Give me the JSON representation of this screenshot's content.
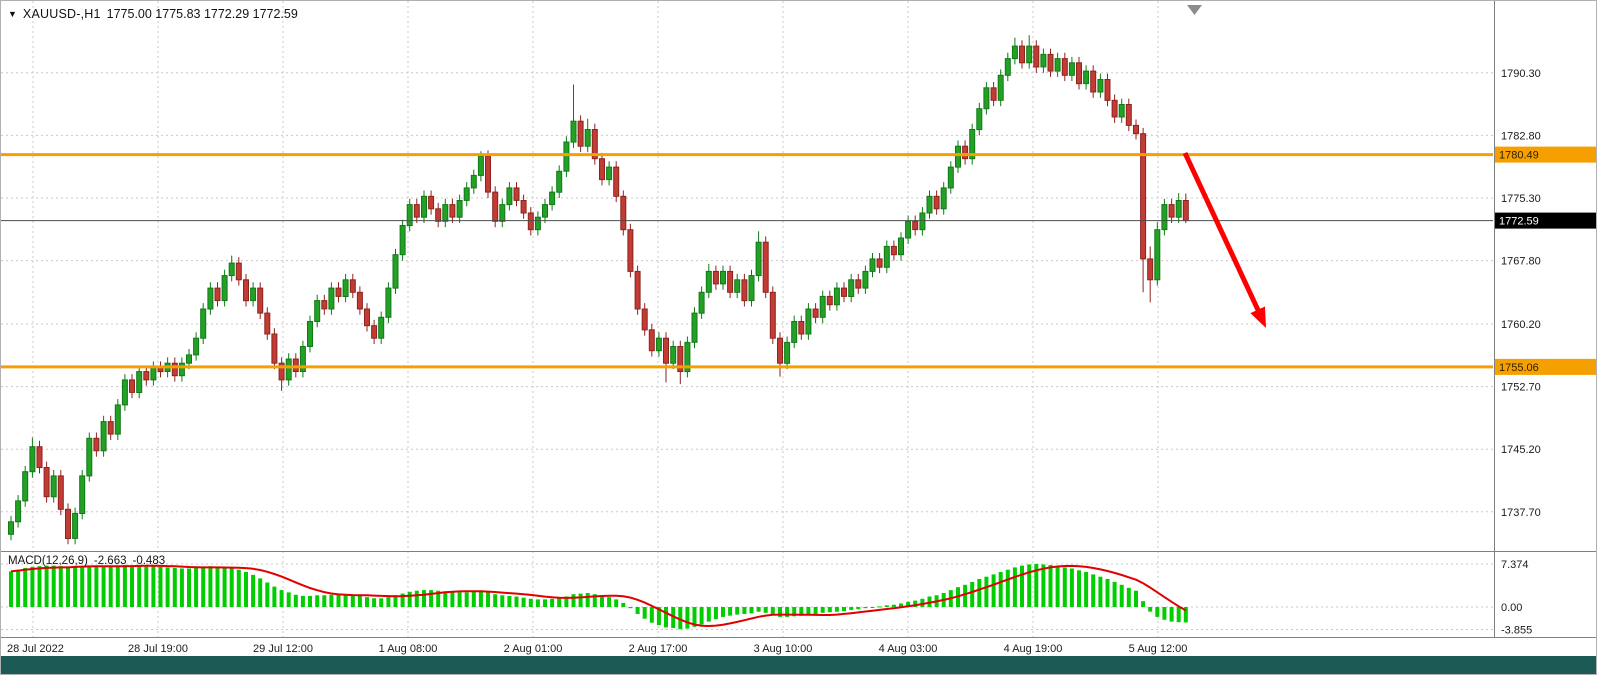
{
  "header": {
    "symbol_period": "XAUUSD-,H1",
    "ohlc_values": "1775.00 1775.83 1772.29 1772.59"
  },
  "colors": {
    "grid": "#C8C8C8",
    "separator": "#808080",
    "axis_text": "#1a1a1a",
    "bull": "#23A127",
    "bull_border": "#0F7A14",
    "bear": "#C23B34",
    "bear_border": "#8E231E",
    "macd_histogram": "#00CE00",
    "macd_signal": "#E00000",
    "level_line": "#F5A000",
    "current_price_line": "#4d4d4d",
    "current_price_tag_bg": "#000000",
    "current_price_tag_text": "#ffffff",
    "arrow": "#FF0000",
    "status_bar": "#1B5A55",
    "shift_marker": "#8c8c8c"
  },
  "chart_data": {
    "type": "candlestick",
    "title": "XAUUSD-,H1",
    "symbol": "XAUUSD-",
    "timeframe": "H1",
    "current_bar": {
      "open": "1775.00",
      "high": "1775.83",
      "low": "1772.29",
      "close": "1772.59"
    },
    "y_axis": {
      "price_min": 1733.0,
      "price_max": 1798.9,
      "ticks": [
        "1790.30",
        "1782.80",
        "1775.30",
        "1767.80",
        "1760.20",
        "1752.70",
        "1745.20",
        "1737.70"
      ]
    },
    "x_axis": {
      "labels": [
        "28 Jul 2022",
        "28 Jul 19:00",
        "29 Jul 12:00",
        "1 Aug 08:00",
        "2 Aug 01:00",
        "2 Aug 17:00",
        "3 Aug 10:00",
        "4 Aug 03:00",
        "4 Aug 19:00",
        "5 Aug 12:00"
      ]
    },
    "levels": [
      {
        "price": 1780.49,
        "label": "1780.49"
      },
      {
        "price": 1755.06,
        "label": "1755.06"
      }
    ],
    "current_price": {
      "price": 1772.59,
      "label": "1772.59"
    },
    "annotations": [
      {
        "type": "arrow",
        "color": "#FF0000",
        "direction": "down-right"
      }
    ],
    "candles": [
      [
        1735.0,
        1737.2,
        1734.3,
        1736.5
      ],
      [
        1736.5,
        1739.7,
        1735.8,
        1739.0
      ],
      [
        1739.0,
        1743.2,
        1738.3,
        1742.5
      ],
      [
        1742.5,
        1746.6,
        1741.8,
        1745.5
      ],
      [
        1745.5,
        1746.2,
        1742.3,
        1743.0
      ],
      [
        1743.0,
        1743.7,
        1738.8,
        1739.5
      ],
      [
        1739.5,
        1742.7,
        1738.8,
        1742.0
      ],
      [
        1742.0,
        1742.7,
        1737.3,
        1738.0
      ],
      [
        1738.0,
        1738.7,
        1733.8,
        1734.5
      ],
      [
        1734.5,
        1738.2,
        1733.8,
        1737.5
      ],
      [
        1737.5,
        1742.7,
        1736.8,
        1742.0
      ],
      [
        1742.0,
        1747.2,
        1741.3,
        1746.5
      ],
      [
        1746.5,
        1747.2,
        1744.3,
        1745.0
      ],
      [
        1745.0,
        1749.2,
        1744.3,
        1748.5
      ],
      [
        1748.5,
        1749.2,
        1746.3,
        1747.0
      ],
      [
        1747.0,
        1751.2,
        1746.3,
        1750.5
      ],
      [
        1750.5,
        1754.2,
        1749.8,
        1753.5
      ],
      [
        1753.5,
        1754.2,
        1751.3,
        1752.0
      ],
      [
        1752.0,
        1755.2,
        1751.3,
        1754.5
      ],
      [
        1754.5,
        1755.2,
        1752.8,
        1753.5
      ],
      [
        1753.5,
        1755.7,
        1752.8,
        1755.0
      ],
      [
        1755.0,
        1755.7,
        1753.8,
        1754.5
      ],
      [
        1754.5,
        1756.2,
        1753.8,
        1755.5
      ],
      [
        1755.5,
        1756.2,
        1753.3,
        1754.0
      ],
      [
        1754.0,
        1756.2,
        1753.3,
        1755.5
      ],
      [
        1755.5,
        1757.2,
        1754.8,
        1756.5
      ],
      [
        1756.5,
        1759.2,
        1755.8,
        1758.5
      ],
      [
        1758.5,
        1762.7,
        1757.8,
        1762.0
      ],
      [
        1762.0,
        1765.2,
        1761.3,
        1764.5
      ],
      [
        1764.5,
        1765.2,
        1762.3,
        1763.0
      ],
      [
        1763.0,
        1766.7,
        1762.3,
        1766.0
      ],
      [
        1766.0,
        1768.4,
        1765.3,
        1767.5
      ],
      [
        1767.5,
        1768.2,
        1764.8,
        1765.5
      ],
      [
        1765.5,
        1766.2,
        1762.3,
        1763.0
      ],
      [
        1763.0,
        1765.2,
        1762.3,
        1764.5
      ],
      [
        1764.5,
        1765.2,
        1760.8,
        1761.5
      ],
      [
        1761.5,
        1762.2,
        1758.3,
        1759.0
      ],
      [
        1759.0,
        1759.7,
        1754.8,
        1755.5
      ],
      [
        1755.5,
        1756.2,
        1752.2,
        1753.5
      ],
      [
        1753.5,
        1756.7,
        1752.8,
        1756.0
      ],
      [
        1756.0,
        1756.7,
        1753.8,
        1754.5
      ],
      [
        1754.5,
        1758.2,
        1753.8,
        1757.5
      ],
      [
        1757.5,
        1761.2,
        1756.8,
        1760.5
      ],
      [
        1760.5,
        1763.7,
        1759.8,
        1763.0
      ],
      [
        1763.0,
        1763.7,
        1761.3,
        1762.0
      ],
      [
        1762.0,
        1765.2,
        1761.3,
        1764.5
      ],
      [
        1764.5,
        1765.2,
        1762.8,
        1763.5
      ],
      [
        1763.5,
        1766.2,
        1762.8,
        1765.5
      ],
      [
        1765.5,
        1766.2,
        1763.3,
        1764.0
      ],
      [
        1764.0,
        1764.7,
        1761.3,
        1762.0
      ],
      [
        1762.0,
        1762.7,
        1759.3,
        1760.0
      ],
      [
        1760.0,
        1760.7,
        1757.8,
        1758.5
      ],
      [
        1758.5,
        1761.7,
        1757.8,
        1761.0
      ],
      [
        1761.0,
        1765.2,
        1760.3,
        1764.5
      ],
      [
        1764.5,
        1769.2,
        1763.8,
        1768.5
      ],
      [
        1768.5,
        1772.7,
        1767.8,
        1772.0
      ],
      [
        1772.0,
        1775.2,
        1771.3,
        1774.5
      ],
      [
        1774.5,
        1775.2,
        1772.3,
        1773.0
      ],
      [
        1773.0,
        1776.2,
        1772.3,
        1775.5
      ],
      [
        1775.5,
        1776.2,
        1773.3,
        1774.0
      ],
      [
        1774.0,
        1774.7,
        1771.8,
        1772.5
      ],
      [
        1772.5,
        1775.2,
        1771.8,
        1774.5
      ],
      [
        1774.5,
        1775.2,
        1772.3,
        1773.0
      ],
      [
        1773.0,
        1775.7,
        1772.3,
        1775.0
      ],
      [
        1775.0,
        1777.2,
        1774.3,
        1776.5
      ],
      [
        1776.5,
        1778.7,
        1775.8,
        1778.0
      ],
      [
        1778.0,
        1780.9,
        1777.3,
        1780.3
      ],
      [
        1780.3,
        1781.0,
        1775.3,
        1776.0
      ],
      [
        1776.0,
        1776.7,
        1771.8,
        1772.5
      ],
      [
        1772.5,
        1775.2,
        1771.8,
        1774.5
      ],
      [
        1774.5,
        1777.2,
        1773.8,
        1776.5
      ],
      [
        1776.5,
        1777.2,
        1774.3,
        1775.0
      ],
      [
        1775.0,
        1775.7,
        1772.8,
        1773.5
      ],
      [
        1773.5,
        1774.2,
        1770.8,
        1771.5
      ],
      [
        1771.5,
        1773.7,
        1770.8,
        1773.0
      ],
      [
        1773.0,
        1775.2,
        1772.3,
        1774.5
      ],
      [
        1774.5,
        1776.7,
        1773.8,
        1776.0
      ],
      [
        1776.0,
        1779.2,
        1775.3,
        1778.5
      ],
      [
        1778.5,
        1782.7,
        1777.8,
        1782.0
      ],
      [
        1782.0,
        1788.9,
        1781.3,
        1784.5
      ],
      [
        1784.5,
        1785.2,
        1780.8,
        1781.5
      ],
      [
        1781.5,
        1784.8,
        1780.8,
        1783.5
      ],
      [
        1783.5,
        1784.2,
        1779.3,
        1780.0
      ],
      [
        1780.0,
        1780.7,
        1776.8,
        1777.5
      ],
      [
        1777.5,
        1779.7,
        1776.8,
        1779.0
      ],
      [
        1779.0,
        1779.7,
        1774.8,
        1775.5
      ],
      [
        1775.5,
        1776.2,
        1770.8,
        1771.5
      ],
      [
        1771.5,
        1772.2,
        1765.8,
        1766.5
      ],
      [
        1766.5,
        1767.2,
        1761.3,
        1762.0
      ],
      [
        1762.0,
        1762.7,
        1758.8,
        1759.5
      ],
      [
        1759.5,
        1760.2,
        1756.3,
        1757.0
      ],
      [
        1757.0,
        1759.2,
        1756.3,
        1758.5
      ],
      [
        1758.5,
        1759.2,
        1753.2,
        1755.5
      ],
      [
        1755.5,
        1758.2,
        1754.8,
        1757.5
      ],
      [
        1757.5,
        1758.2,
        1753.0,
        1754.5
      ],
      [
        1754.5,
        1758.7,
        1753.8,
        1758.0
      ],
      [
        1758.0,
        1762.2,
        1757.3,
        1761.5
      ],
      [
        1761.5,
        1764.7,
        1760.8,
        1764.0
      ],
      [
        1764.0,
        1767.4,
        1763.3,
        1766.5
      ],
      [
        1766.5,
        1767.2,
        1764.3,
        1765.0
      ],
      [
        1765.0,
        1767.2,
        1764.3,
        1766.5
      ],
      [
        1766.5,
        1767.2,
        1763.3,
        1764.0
      ],
      [
        1764.0,
        1766.2,
        1763.3,
        1765.5
      ],
      [
        1765.5,
        1766.2,
        1762.3,
        1763.0
      ],
      [
        1763.0,
        1766.7,
        1762.3,
        1766.0
      ],
      [
        1766.0,
        1771.3,
        1765.3,
        1770.0
      ],
      [
        1770.0,
        1770.7,
        1763.3,
        1764.0
      ],
      [
        1764.0,
        1764.7,
        1757.8,
        1758.5
      ],
      [
        1758.5,
        1759.2,
        1753.9,
        1755.5
      ],
      [
        1755.5,
        1758.7,
        1754.8,
        1758.0
      ],
      [
        1758.0,
        1761.2,
        1757.3,
        1760.5
      ],
      [
        1760.5,
        1761.2,
        1758.3,
        1759.0
      ],
      [
        1759.0,
        1762.7,
        1758.3,
        1762.0
      ],
      [
        1762.0,
        1762.7,
        1760.3,
        1761.0
      ],
      [
        1761.0,
        1764.2,
        1760.3,
        1763.5
      ],
      [
        1763.5,
        1764.2,
        1761.8,
        1762.5
      ],
      [
        1762.5,
        1765.2,
        1761.8,
        1764.5
      ],
      [
        1764.5,
        1765.2,
        1762.8,
        1763.5
      ],
      [
        1763.5,
        1766.2,
        1762.8,
        1765.5
      ],
      [
        1765.5,
        1766.2,
        1763.8,
        1764.5
      ],
      [
        1764.5,
        1767.2,
        1763.8,
        1766.5
      ],
      [
        1766.5,
        1768.7,
        1765.8,
        1768.0
      ],
      [
        1768.0,
        1768.7,
        1766.3,
        1767.0
      ],
      [
        1767.0,
        1770.2,
        1766.3,
        1769.5
      ],
      [
        1769.5,
        1770.2,
        1767.8,
        1768.5
      ],
      [
        1768.5,
        1771.2,
        1767.8,
        1770.5
      ],
      [
        1770.5,
        1773.2,
        1769.8,
        1772.5
      ],
      [
        1772.5,
        1773.2,
        1770.8,
        1771.5
      ],
      [
        1771.5,
        1774.2,
        1770.8,
        1773.5
      ],
      [
        1773.5,
        1776.2,
        1772.8,
        1775.5
      ],
      [
        1775.5,
        1776.2,
        1773.3,
        1774.0
      ],
      [
        1774.0,
        1777.2,
        1773.3,
        1776.5
      ],
      [
        1776.5,
        1779.7,
        1775.8,
        1779.0
      ],
      [
        1779.0,
        1782.2,
        1778.3,
        1781.5
      ],
      [
        1781.5,
        1782.2,
        1779.3,
        1780.0
      ],
      [
        1780.0,
        1784.2,
        1779.3,
        1783.5
      ],
      [
        1783.5,
        1786.7,
        1782.8,
        1786.0
      ],
      [
        1786.0,
        1789.2,
        1785.3,
        1788.5
      ],
      [
        1788.5,
        1789.2,
        1786.3,
        1787.0
      ],
      [
        1787.0,
        1790.7,
        1786.3,
        1790.0
      ],
      [
        1790.0,
        1792.7,
        1789.3,
        1792.0
      ],
      [
        1792.0,
        1794.5,
        1791.3,
        1793.5
      ],
      [
        1793.5,
        1794.2,
        1790.8,
        1791.5
      ],
      [
        1791.5,
        1794.8,
        1790.8,
        1793.5
      ],
      [
        1793.5,
        1794.2,
        1790.3,
        1791.0
      ],
      [
        1791.0,
        1793.2,
        1790.3,
        1792.5
      ],
      [
        1792.5,
        1793.2,
        1789.8,
        1790.5
      ],
      [
        1790.5,
        1792.7,
        1789.8,
        1792.0
      ],
      [
        1792.0,
        1792.7,
        1789.3,
        1790.0
      ],
      [
        1790.0,
        1792.2,
        1789.3,
        1791.5
      ],
      [
        1791.5,
        1792.2,
        1788.3,
        1789.0
      ],
      [
        1789.0,
        1791.2,
        1788.3,
        1790.5
      ],
      [
        1790.5,
        1791.2,
        1787.3,
        1788.0
      ],
      [
        1788.0,
        1790.2,
        1787.3,
        1789.5
      ],
      [
        1789.5,
        1790.2,
        1786.3,
        1787.0
      ],
      [
        1787.0,
        1787.7,
        1784.3,
        1785.0
      ],
      [
        1785.0,
        1787.2,
        1784.3,
        1786.5
      ],
      [
        1786.5,
        1787.2,
        1783.3,
        1784.0
      ],
      [
        1784.0,
        1784.7,
        1782.3,
        1783.0
      ],
      [
        1783.0,
        1783.7,
        1764.0,
        1768.0
      ],
      [
        1768.0,
        1769.5,
        1762.8,
        1765.5
      ],
      [
        1765.5,
        1772.4,
        1764.8,
        1771.5
      ],
      [
        1771.5,
        1775.2,
        1770.8,
        1774.5
      ],
      [
        1774.5,
        1775.2,
        1772.3,
        1773.0
      ],
      [
        1773.0,
        1775.9,
        1772.3,
        1775.0
      ],
      [
        1775.0,
        1775.83,
        1772.29,
        1772.59
      ]
    ],
    "indicator": {
      "name_label": "MACD(12,26,9)",
      "main_value": "-2.663",
      "signal_value": "-0.483",
      "axis_ticks": [
        "7.374",
        "0.00",
        "-3.855"
      ],
      "signal_period": 9,
      "macd_main": [
        6.1,
        6.4,
        6.7,
        6.9,
        7.0,
        7.1,
        7.1,
        7.0,
        6.9,
        6.8,
        6.9,
        7.0,
        7.0,
        7.1,
        7.0,
        7.1,
        7.2,
        7.1,
        7.1,
        7.0,
        7.0,
        6.9,
        6.8,
        6.7,
        6.6,
        6.6,
        6.7,
        6.9,
        7.0,
        6.9,
        6.8,
        6.7,
        6.4,
        6.0,
        5.5,
        4.9,
        4.2,
        3.5,
        2.9,
        2.5,
        2.1,
        1.9,
        1.9,
        2.0,
        2.0,
        2.1,
        2.1,
        2.2,
        2.1,
        1.9,
        1.7,
        1.5,
        1.5,
        1.7,
        2.0,
        2.3,
        2.6,
        2.8,
        2.9,
        2.9,
        2.8,
        2.7,
        2.6,
        2.5,
        2.5,
        2.6,
        2.7,
        2.5,
        2.2,
        2.0,
        1.9,
        1.8,
        1.6,
        1.4,
        1.3,
        1.3,
        1.4,
        1.5,
        1.8,
        2.2,
        2.3,
        2.4,
        2.2,
        1.9,
        1.7,
        1.3,
        0.7,
        -0.2,
        -1.2,
        -2.0,
        -2.7,
        -3.1,
        -3.5,
        -3.6,
        -3.8,
        -3.7,
        -3.4,
        -3.0,
        -2.5,
        -2.1,
        -1.7,
        -1.5,
        -1.3,
        -1.2,
        -1.1,
        -0.8,
        -1.0,
        -1.4,
        -1.7,
        -1.7,
        -1.6,
        -1.5,
        -1.3,
        -1.2,
        -1.0,
        -0.9,
        -0.8,
        -0.7,
        -0.5,
        -0.4,
        -0.2,
        0.0,
        0.1,
        0.3,
        0.4,
        0.6,
        0.9,
        1.1,
        1.4,
        1.8,
        2.0,
        2.4,
        2.9,
        3.4,
        3.8,
        4.3,
        4.8,
        5.2,
        5.6,
        6.0,
        6.4,
        6.8,
        7.1,
        7.3,
        7.4,
        7.3,
        7.2,
        7.0,
        6.8,
        6.6,
        6.3,
        6.0,
        5.6,
        5.2,
        4.8,
        4.3,
        3.8,
        3.3,
        2.8,
        1.0,
        -0.8,
        -1.7,
        -2.2,
        -2.5,
        -2.6,
        -2.663
      ]
    }
  }
}
